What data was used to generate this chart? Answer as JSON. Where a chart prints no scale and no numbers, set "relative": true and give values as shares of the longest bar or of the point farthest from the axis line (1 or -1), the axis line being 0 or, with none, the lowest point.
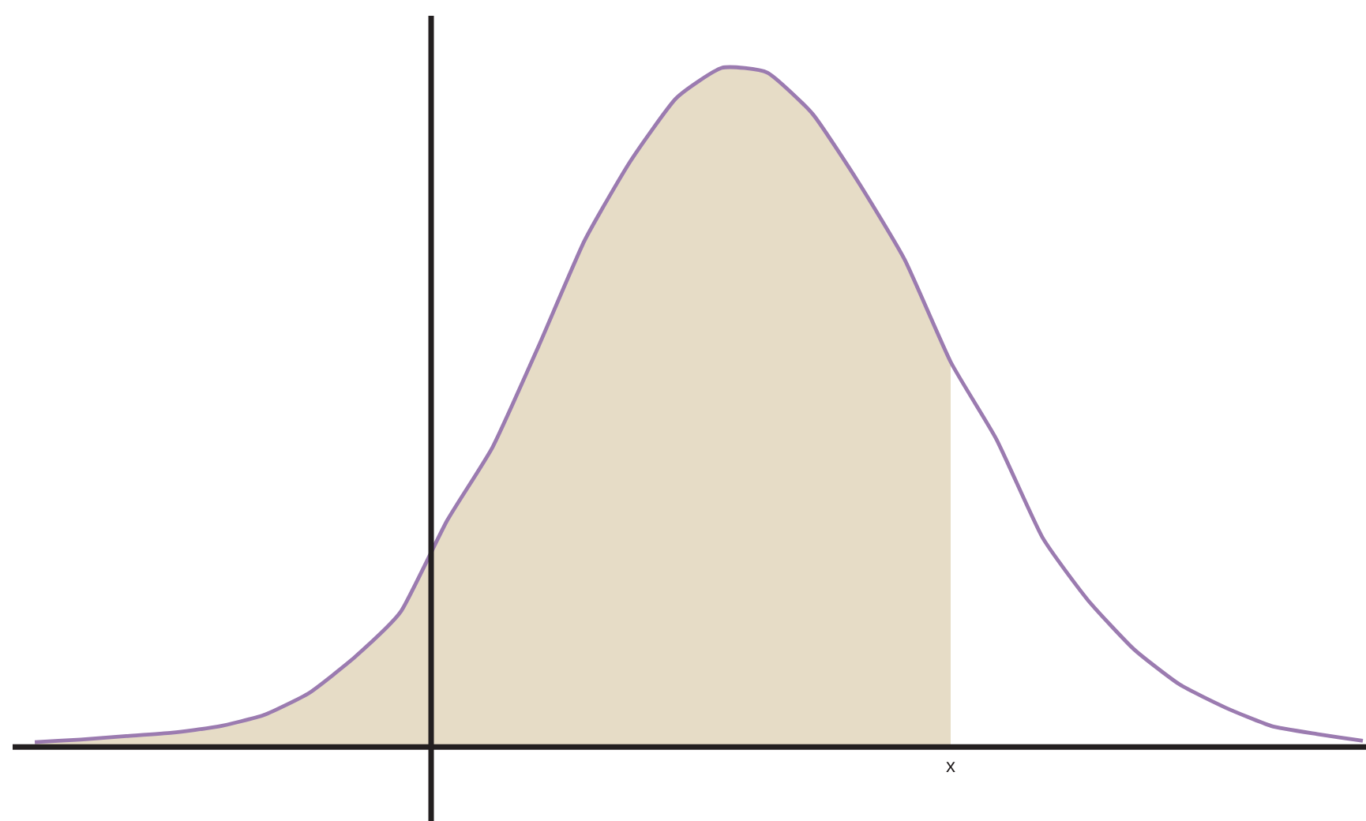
{
  "chart_data": {
    "type": "line",
    "relative": true,
    "marker": "none",
    "annotations": [
      "x"
    ],
    "categories": [
      null,
      null,
      null,
      null,
      null,
      null,
      null,
      null,
      null,
      null,
      null,
      null,
      null,
      null,
      null,
      null,
      null,
      null,
      null,
      null,
      null,
      null,
      null,
      null,
      null,
      null,
      null,
      null,
      null,
      null
    ],
    "series": [
      {
        "type": "area",
        "color": "#e6dcc6",
        "values": [
          0.007,
          0.011,
          0.016,
          0.021,
          0.03,
          0.047,
          0.08,
          0.133,
          0.2,
          0.333,
          0.442,
          0.59,
          0.745,
          0.862,
          0.955,
          1,
          0.993,
          0.931,
          0.83,
          0.717,
          0.567,
          null,
          null,
          null,
          null,
          null,
          null,
          null,
          null,
          null
        ]
      },
      {
        "color": "#9b7bb0",
        "values": [
          0.007,
          0.011,
          0.016,
          0.021,
          0.03,
          0.047,
          0.08,
          0.133,
          0.2,
          0.333,
          0.442,
          0.59,
          0.745,
          0.862,
          0.955,
          1,
          0.993,
          0.931,
          0.83,
          0.717,
          0.567,
          0.453,
          0.309,
          0.216,
          0.144,
          0.092,
          0.058,
          0.031,
          0.019,
          0.009
        ]
      }
    ]
  }
}
